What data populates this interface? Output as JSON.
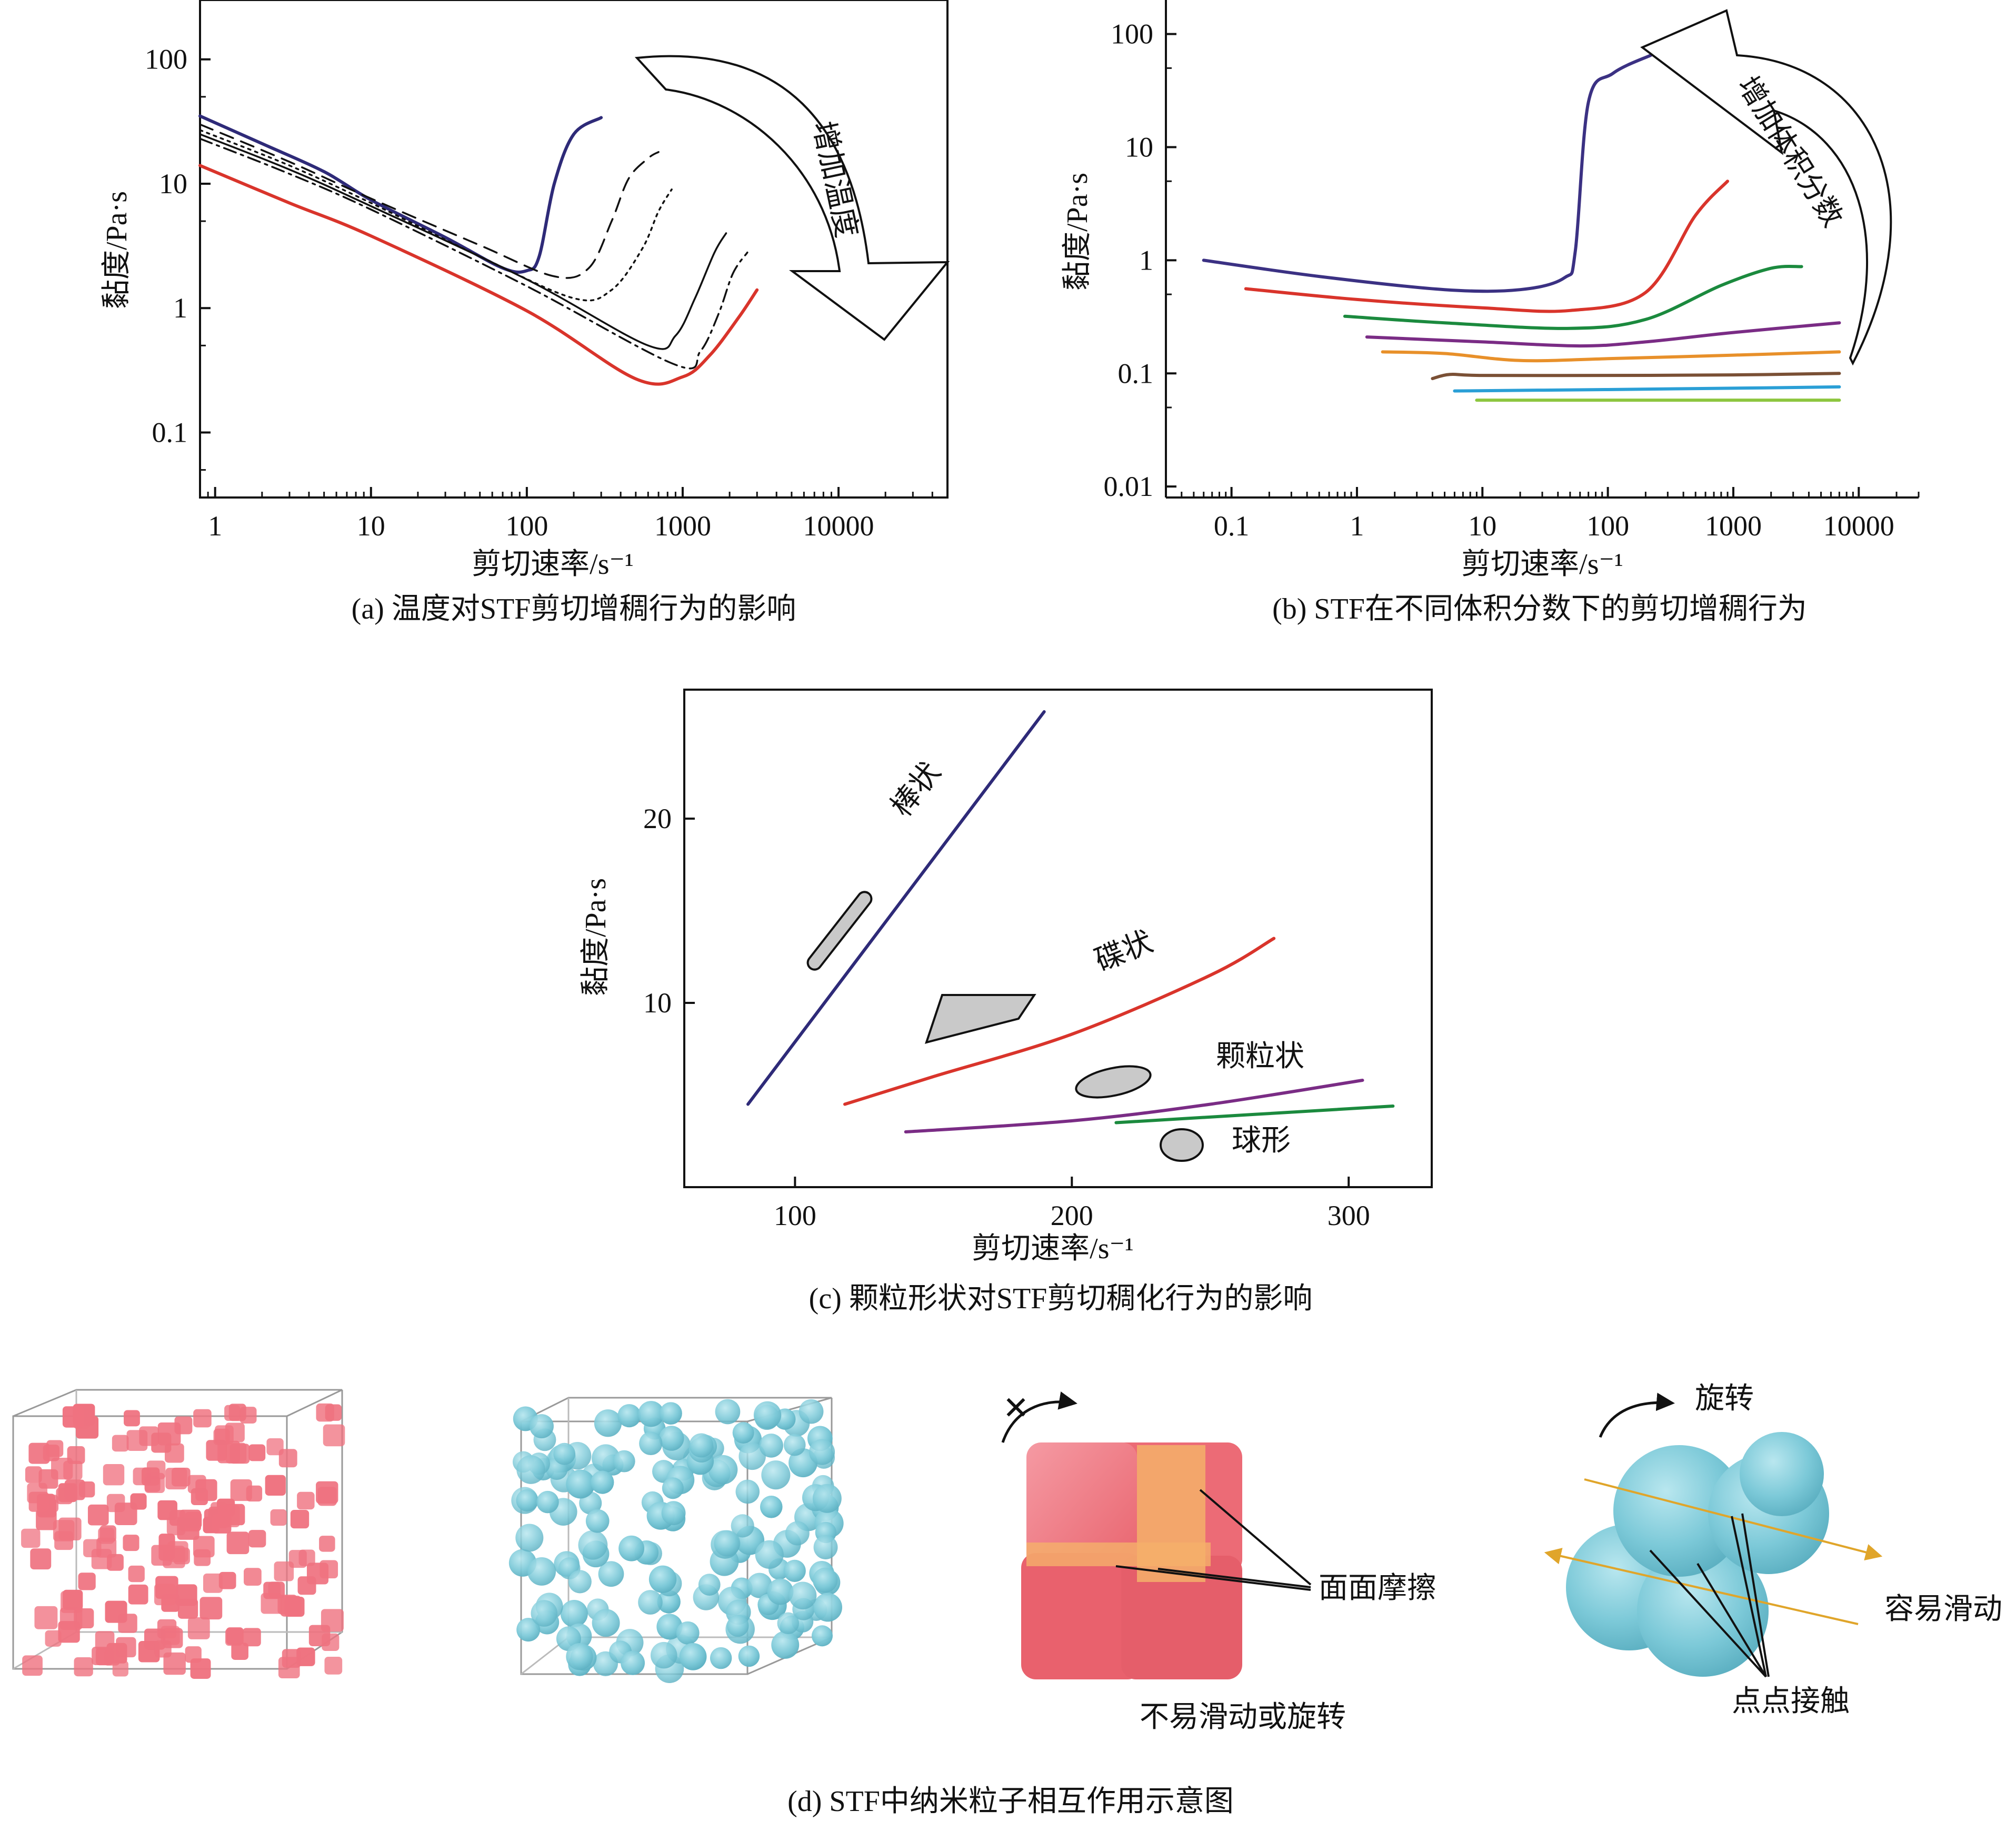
{
  "panels": {
    "a": {
      "caption": "(a) 温度对STF剪切增稠行为的影响",
      "xlabel": "剪切速率/s⁻¹",
      "ylabel": "黏度/Pa·s",
      "arrow_text": "增加温度",
      "x_ticks": [
        "1",
        "10",
        "100",
        "1000",
        "10000"
      ],
      "y_ticks": [
        "0.1",
        "1",
        "10",
        "100"
      ]
    },
    "b": {
      "caption": "(b) STF在不同体积分数下的剪切增稠行为",
      "xlabel": "剪切速率/s⁻¹",
      "ylabel": "黏度/Pa·s",
      "arrow_text": "增加体积分数",
      "x_ticks": [
        "0.1",
        "1",
        "10",
        "100",
        "1000",
        "10000"
      ],
      "y_ticks": [
        "0.01",
        "0.1",
        "1",
        "10",
        "100"
      ]
    },
    "c": {
      "caption": "(c) 颗粒形状对STF剪切稠化行为的影响",
      "xlabel": "剪切速率/s⁻¹",
      "ylabel": "黏度/Pa·s",
      "x_ticks": [
        "100",
        "200",
        "300"
      ],
      "y_ticks": [
        "10",
        "20"
      ]
    },
    "d": {
      "caption": "(d) STF中纳米粒子相互作用示意图",
      "label_cube_rotation": "不易滑动或旋转",
      "label_face_friction": "面面摩擦",
      "label_rotate": "旋转",
      "label_slide": "容易滑动",
      "label_point_contact": "点点接触"
    }
  },
  "chart_data": [
    {
      "type": "line",
      "panel": "a",
      "x_scale": "log",
      "y_scale": "log",
      "xlim": [
        0.8,
        50000
      ],
      "ylim": [
        0.03,
        300
      ],
      "series": [
        {
          "color": "#2e2a78",
          "style": "solid",
          "x": [
            0.8,
            2,
            5,
            10,
            30,
            70,
            100,
            120,
            150,
            200,
            300
          ],
          "y": [
            35,
            21,
            12.5,
            7.4,
            3.7,
            2.1,
            2.0,
            2.6,
            10,
            25,
            34
          ]
        },
        {
          "color": "#111111",
          "style": "dashed",
          "x": [
            0.8,
            3,
            10,
            50,
            150,
            250,
            350,
            450,
            600,
            700
          ],
          "y": [
            30,
            15,
            7.6,
            3.2,
            1.8,
            2.1,
            5,
            11,
            16,
            18
          ]
        },
        {
          "color": "#111111",
          "style": "dotted",
          "x": [
            0.8,
            3,
            10,
            50,
            200,
            350,
            550,
            700,
            850
          ],
          "y": [
            27,
            14,
            7.0,
            2.6,
            1.2,
            1.4,
            3,
            6,
            9
          ]
        },
        {
          "color": "#111111",
          "style": "solid-thin",
          "x": [
            0.8,
            3,
            10,
            100,
            600,
            900,
            1200,
            1600,
            1900
          ],
          "y": [
            25,
            13,
            6.6,
            1.7,
            0.5,
            0.6,
            1.2,
            2.8,
            4
          ]
        },
        {
          "color": "#111111",
          "style": "dashdot",
          "x": [
            0.8,
            3,
            10,
            100,
            900,
            1300,
            1700,
            2100,
            2600
          ],
          "y": [
            23,
            12,
            6.2,
            1.5,
            0.35,
            0.45,
            0.9,
            1.9,
            2.8
          ]
        },
        {
          "color": "#d9342b",
          "style": "solid",
          "x": [
            0.8,
            3,
            10,
            100,
            500,
            1000,
            1500,
            2300,
            3000
          ],
          "y": [
            14,
            7,
            3.8,
            0.95,
            0.27,
            0.28,
            0.42,
            0.85,
            1.4
          ]
        }
      ]
    },
    {
      "type": "line",
      "panel": "b",
      "x_scale": "log",
      "y_scale": "log",
      "xlim": [
        0.03,
        30000
      ],
      "ylim": [
        0.008,
        200
      ],
      "series": [
        {
          "color": "#3b3183",
          "x": [
            0.06,
            0.5,
            5,
            20,
            45,
            55,
            70,
            110,
            220
          ],
          "y": [
            1.0,
            0.72,
            0.55,
            0.55,
            0.7,
            1.2,
            25,
            45,
            65
          ]
        },
        {
          "color": "#d9342b",
          "x": [
            0.13,
            1,
            10,
            50,
            200,
            500,
            900
          ],
          "y": [
            0.56,
            0.45,
            0.38,
            0.36,
            0.52,
            2.5,
            5
          ]
        },
        {
          "color": "#1b8a3e",
          "x": [
            0.8,
            5,
            50,
            200,
            800,
            2000,
            3500
          ],
          "y": [
            0.32,
            0.28,
            0.25,
            0.3,
            0.6,
            0.85,
            0.88
          ]
        },
        {
          "color": "#7a2c85",
          "x": [
            1.2,
            10,
            60,
            200,
            1000,
            7000
          ],
          "y": [
            0.21,
            0.19,
            0.175,
            0.19,
            0.23,
            0.28
          ]
        },
        {
          "color": "#e8902a",
          "x": [
            1.6,
            5,
            20,
            100,
            1000,
            7000
          ],
          "y": [
            0.155,
            0.15,
            0.13,
            0.135,
            0.145,
            0.155
          ]
        },
        {
          "color": "#7a5035",
          "x": [
            4,
            5.5,
            10,
            100,
            1000,
            7000
          ],
          "y": [
            0.09,
            0.098,
            0.096,
            0.096,
            0.097,
            0.1
          ]
        },
        {
          "color": "#2a9fd6",
          "x": [
            6,
            100,
            1000,
            7000
          ],
          "y": [
            0.07,
            0.072,
            0.074,
            0.076
          ]
        },
        {
          "color": "#8dc63f",
          "x": [
            9,
            100,
            1000,
            7000
          ],
          "y": [
            0.058,
            0.058,
            0.058,
            0.058
          ]
        }
      ]
    },
    {
      "type": "line",
      "panel": "c",
      "x_scale": "linear",
      "y_scale": "linear",
      "xlim": [
        60,
        330
      ],
      "ylim": [
        0,
        27
      ],
      "series": [
        {
          "name": "棒状",
          "color": "#2e2a78",
          "x": [
            83,
            190
          ],
          "y": [
            4.5,
            25.8
          ]
        },
        {
          "name": "碟状",
          "color": "#d9342b",
          "x": [
            118,
            150,
            200,
            250,
            273
          ],
          "y": [
            4.5,
            6.0,
            8.3,
            11.5,
            13.5
          ]
        },
        {
          "name": "颗粒状",
          "color": "#7a2c85",
          "x": [
            140,
            200,
            250,
            305
          ],
          "y": [
            3.0,
            3.6,
            4.5,
            5.8
          ]
        },
        {
          "name": "球形",
          "color": "#1b8a3e",
          "x": [
            216,
            316
          ],
          "y": [
            3.5,
            4.4
          ]
        }
      ]
    }
  ],
  "colors": {
    "cube_particle": "#ef7280",
    "sphere_particle": "#7cc9d8",
    "friction_highlight": "#f5b06a",
    "slide_line": "#e0a52a",
    "shape_gray": "#c9c9c9"
  }
}
